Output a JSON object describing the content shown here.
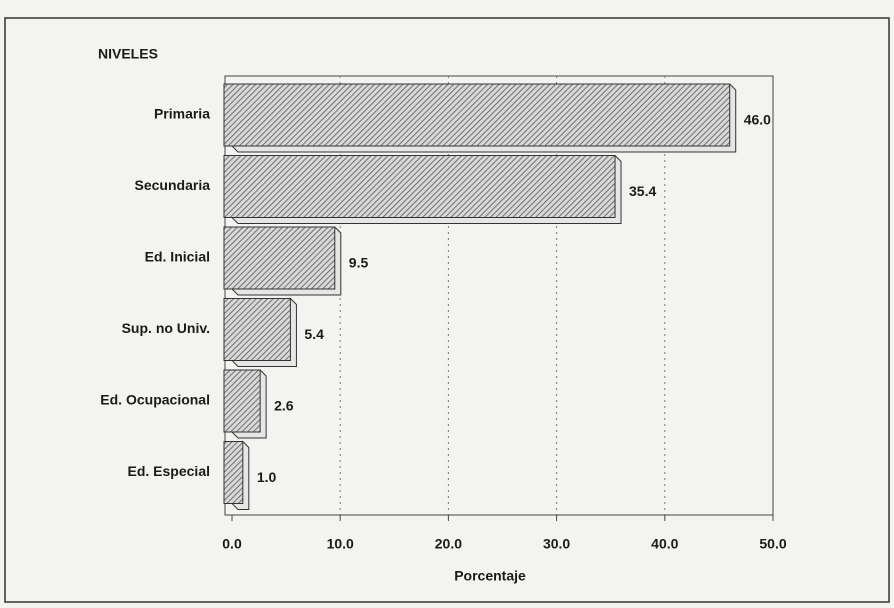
{
  "chart_data": {
    "type": "bar",
    "orientation": "horizontal",
    "y_axis_title": "NIVELES",
    "x_axis_label": "Porcentaje",
    "categories": [
      "Primaria",
      "Secundaria",
      "Ed. Inicial",
      "Sup. no Univ.",
      "Ed. Ocupacional",
      "Ed. Especial"
    ],
    "values": [
      46.0,
      35.4,
      9.5,
      5.4,
      2.6,
      1.0
    ],
    "value_labels": [
      "46.0",
      "35.4",
      "9.5",
      "5.4",
      "2.6",
      "1.0"
    ],
    "color": "#8a8a8a",
    "xlim": [
      0,
      50
    ],
    "xticks": [
      {
        "value": 0,
        "label": "0.0"
      },
      {
        "value": 10,
        "label": "10.0"
      },
      {
        "value": 20,
        "label": "20.0"
      },
      {
        "value": 30,
        "label": "30.0"
      },
      {
        "value": 40,
        "label": "40.0"
      },
      {
        "value": 50,
        "label": "50.0"
      }
    ],
    "grid": true
  }
}
